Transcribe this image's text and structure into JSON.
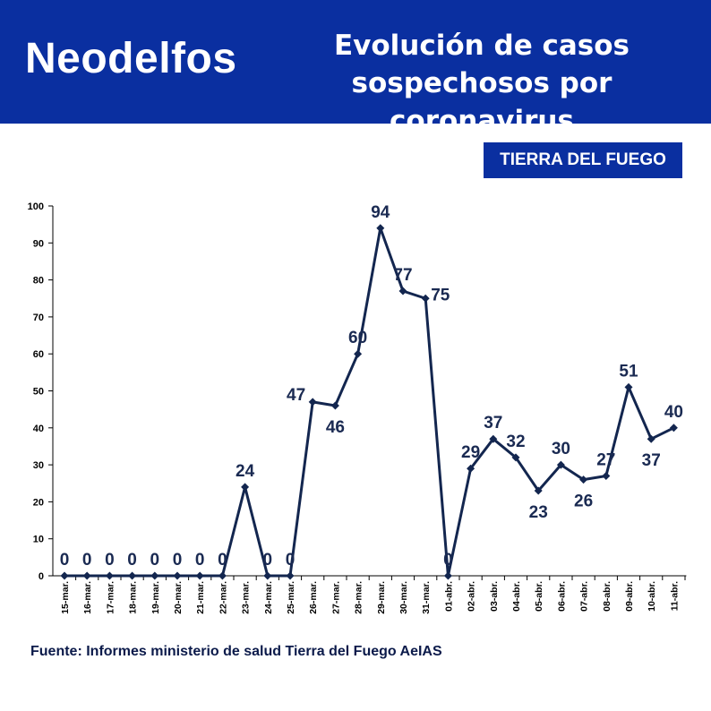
{
  "header": {
    "brand": "Neodelfos",
    "title_line1": "Evolución de casos",
    "title_line2": "sospechosos por coronavirus",
    "region": "TIERRA DEL FUEGO"
  },
  "footer": {
    "source": "Fuente: Informes ministerio de salud Tierra del Fuego AeIAS"
  },
  "colors": {
    "banner": "#0a2fa0",
    "series": "#13264f",
    "text": "#0b1a4a"
  },
  "chart_data": {
    "type": "line",
    "title": "Evolución de casos sospechosos por coronavirus",
    "subtitle": "TIERRA DEL FUEGO",
    "xlabel": "",
    "ylabel": "",
    "ylim": [
      0,
      100
    ],
    "yticks": [
      0,
      10,
      20,
      30,
      40,
      50,
      60,
      70,
      80,
      90,
      100
    ],
    "grid": false,
    "legend": "none",
    "categories": [
      "15-mar.",
      "16-mar.",
      "17-mar.",
      "18-mar.",
      "19-mar.",
      "20-mar.",
      "21-mar.",
      "22-mar.",
      "23-mar.",
      "24-mar.",
      "25-mar.",
      "26-mar.",
      "27-mar.",
      "28-mar.",
      "29-mar.",
      "30-mar.",
      "31-mar.",
      "01-abr.",
      "02-abr.",
      "03-abr.",
      "04-abr.",
      "05-abr.",
      "06-abr.",
      "07-abr.",
      "08-abr.",
      "09-abr.",
      "10-abr.",
      "11-abr."
    ],
    "values": [
      0,
      0,
      0,
      0,
      0,
      0,
      0,
      0,
      24,
      0,
      0,
      47,
      46,
      60,
      94,
      77,
      75,
      0,
      29,
      37,
      32,
      23,
      30,
      26,
      27,
      51,
      37,
      40
    ],
    "label_position": [
      "above",
      "above",
      "above",
      "above",
      "above",
      "above",
      "above",
      "above",
      "above",
      "above",
      "above",
      "left",
      "below",
      "above",
      "above",
      "above",
      "right",
      "above",
      "above",
      "above",
      "above",
      "below",
      "above",
      "below",
      "above",
      "above",
      "below",
      "above"
    ]
  }
}
